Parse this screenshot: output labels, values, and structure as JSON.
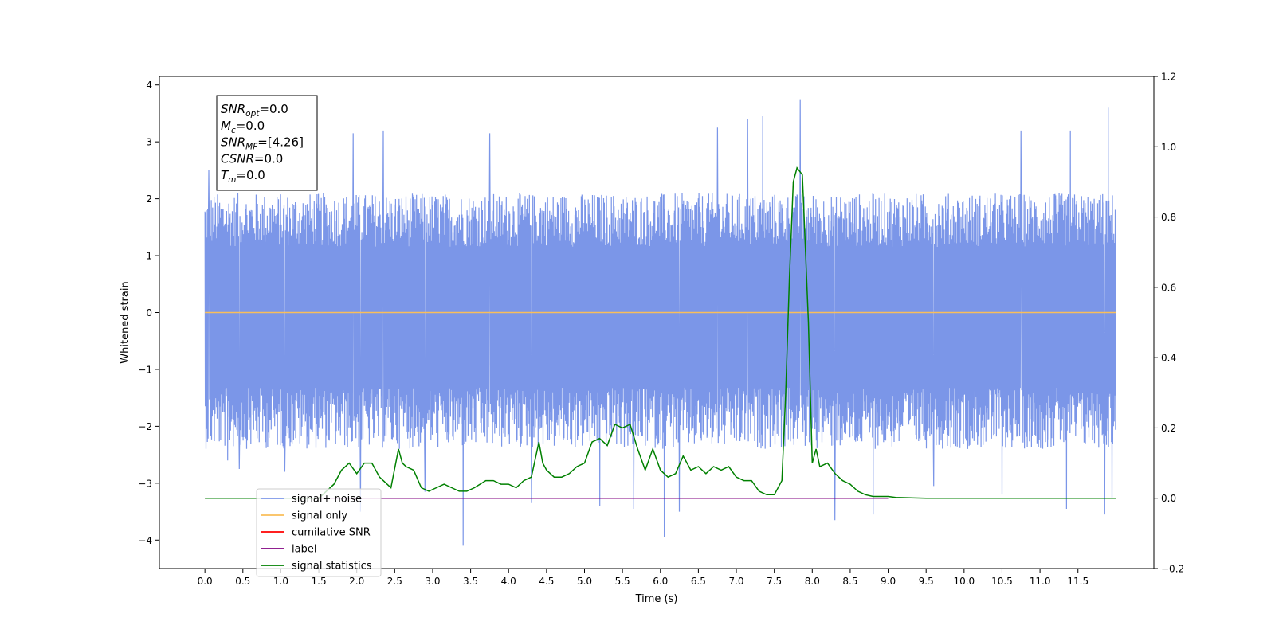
{
  "chart_data": {
    "type": "line",
    "xlabel": "Time (s)",
    "ylabel": "Whitened strain",
    "xlim": [
      -0.6,
      12.5
    ],
    "ylim": [
      -4.5,
      4.15
    ],
    "y2lim": [
      -0.2,
      1.2
    ],
    "grid": false,
    "legend_position": "lower-left",
    "xticks": [
      0.0,
      0.5,
      1.0,
      1.5,
      2.0,
      2.5,
      3.0,
      3.5,
      4.0,
      4.5,
      5.0,
      5.5,
      6.0,
      6.5,
      7.0,
      7.5,
      8.0,
      8.5,
      9.0,
      9.5,
      10.0,
      10.5,
      11.0,
      11.5
    ],
    "xtick_labels": [
      "0.0",
      "0.5",
      "1.0",
      "1.5",
      "2.0",
      "2.5",
      "3.0",
      "3.5",
      "4.0",
      "4.5",
      "5.0",
      "5.5",
      "6.0",
      "6.5",
      "7.0",
      "7.5",
      "8.0",
      "8.5",
      "9.0",
      "9.5",
      "10.0",
      "10.5",
      "11.0",
      "11.5"
    ],
    "yticks": [
      -4,
      -3,
      -2,
      -1,
      0,
      1,
      2,
      3,
      4
    ],
    "ytick_labels": [
      "−4",
      "−3",
      "−2",
      "−1",
      "0",
      "1",
      "2",
      "3",
      "4"
    ],
    "y2ticks": [
      -0.2,
      0.0,
      0.2,
      0.4,
      0.6,
      0.8,
      1.0,
      1.2
    ],
    "y2tick_labels": [
      "−0.2",
      "0.0",
      "0.2",
      "0.4",
      "0.6",
      "0.8",
      "1.0",
      "1.2"
    ],
    "annotation": {
      "lines": [
        {
          "base": "SNR",
          "sub": "opt",
          "rest": "=0.0"
        },
        {
          "base": "M",
          "sub": "c",
          "rest": "=0.0"
        },
        {
          "base": "SNR",
          "sub": "MF",
          "rest": "=[4.26]"
        },
        {
          "base": "CSNR",
          "sub": "",
          "rest": "=0.0"
        },
        {
          "base": "T",
          "sub": "m",
          "rest": "=0.0"
        }
      ]
    },
    "series": [
      {
        "name": "signal+ noise",
        "color": "#7b96e8",
        "axis": "left",
        "x_range": [
          0.0,
          12.0
        ],
        "spread": [
          -2.4,
          2.1
        ],
        "spikes": [
          {
            "x": 0.05,
            "y": 2.5
          },
          {
            "x": 0.3,
            "y": -2.6
          },
          {
            "x": 0.45,
            "y": -2.75
          },
          {
            "x": 1.05,
            "y": -2.8
          },
          {
            "x": 1.95,
            "y": 3.15
          },
          {
            "x": 2.05,
            "y": -3.5
          },
          {
            "x": 2.35,
            "y": 3.2
          },
          {
            "x": 2.9,
            "y": -3.15
          },
          {
            "x": 3.4,
            "y": -4.1
          },
          {
            "x": 3.75,
            "y": 3.15
          },
          {
            "x": 4.3,
            "y": -3.35
          },
          {
            "x": 5.2,
            "y": -3.4
          },
          {
            "x": 5.65,
            "y": -3.45
          },
          {
            "x": 6.05,
            "y": -3.95
          },
          {
            "x": 6.25,
            "y": -3.5
          },
          {
            "x": 6.75,
            "y": 3.25
          },
          {
            "x": 7.15,
            "y": 3.4
          },
          {
            "x": 7.35,
            "y": 3.45
          },
          {
            "x": 7.84,
            "y": 3.75
          },
          {
            "x": 8.3,
            "y": -3.65
          },
          {
            "x": 8.8,
            "y": -3.55
          },
          {
            "x": 9.6,
            "y": -3.05
          },
          {
            "x": 10.5,
            "y": -3.2
          },
          {
            "x": 10.75,
            "y": 3.2
          },
          {
            "x": 11.35,
            "y": -3.45
          },
          {
            "x": 11.4,
            "y": 3.2
          },
          {
            "x": 11.85,
            "y": -3.55
          },
          {
            "x": 11.9,
            "y": 3.6
          },
          {
            "x": 11.95,
            "y": -3.25
          }
        ]
      },
      {
        "name": "signal only",
        "color": "#f9be5a",
        "axis": "left",
        "x": [
          0.0,
          12.0
        ],
        "y": [
          0.0,
          0.0
        ]
      },
      {
        "name": "cumilative SNR",
        "color": "#ff0000",
        "axis": "right",
        "x": [],
        "y": []
      },
      {
        "name": "label",
        "color": "#800080",
        "axis": "right",
        "x": [
          0.0,
          9.0
        ],
        "y": [
          0.0,
          0.0
        ]
      },
      {
        "name": "signal statistics",
        "color": "#008000",
        "axis": "right",
        "x": [
          0.0,
          1.5,
          1.7,
          1.8,
          1.9,
          2.0,
          2.1,
          2.2,
          2.3,
          2.45,
          2.55,
          2.6,
          2.65,
          2.75,
          2.85,
          2.95,
          3.05,
          3.15,
          3.25,
          3.35,
          3.45,
          3.55,
          3.7,
          3.8,
          3.9,
          4.0,
          4.1,
          4.2,
          4.3,
          4.4,
          4.45,
          4.5,
          4.6,
          4.7,
          4.8,
          4.9,
          5.0,
          5.1,
          5.2,
          5.3,
          5.4,
          5.5,
          5.6,
          5.7,
          5.8,
          5.9,
          6.0,
          6.1,
          6.2,
          6.3,
          6.4,
          6.5,
          6.6,
          6.7,
          6.8,
          6.9,
          7.0,
          7.1,
          7.2,
          7.3,
          7.4,
          7.5,
          7.6,
          7.65,
          7.7,
          7.75,
          7.8,
          7.87,
          7.95,
          8.0,
          8.05,
          8.1,
          8.2,
          8.3,
          8.4,
          8.5,
          8.6,
          8.7,
          8.8,
          9.0,
          9.1,
          9.5,
          12.0
        ],
        "y": [
          0.0,
          0.0,
          0.04,
          0.08,
          0.1,
          0.07,
          0.1,
          0.1,
          0.06,
          0.03,
          0.14,
          0.1,
          0.09,
          0.08,
          0.03,
          0.02,
          0.03,
          0.04,
          0.03,
          0.02,
          0.02,
          0.03,
          0.05,
          0.05,
          0.04,
          0.04,
          0.03,
          0.05,
          0.06,
          0.16,
          0.1,
          0.08,
          0.06,
          0.06,
          0.07,
          0.09,
          0.1,
          0.16,
          0.17,
          0.15,
          0.21,
          0.2,
          0.21,
          0.14,
          0.08,
          0.14,
          0.08,
          0.06,
          0.07,
          0.12,
          0.08,
          0.09,
          0.07,
          0.09,
          0.08,
          0.09,
          0.06,
          0.05,
          0.05,
          0.02,
          0.01,
          0.01,
          0.05,
          0.3,
          0.63,
          0.9,
          0.94,
          0.92,
          0.5,
          0.1,
          0.14,
          0.09,
          0.1,
          0.07,
          0.05,
          0.04,
          0.02,
          0.01,
          0.005,
          0.005,
          0.002,
          0.0,
          0.0
        ]
      }
    ]
  }
}
